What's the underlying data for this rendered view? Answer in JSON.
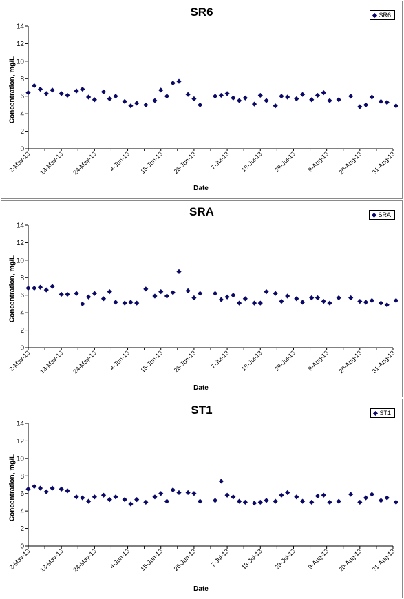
{
  "chart_data": [
    {
      "type": "scatter",
      "title": "SR6",
      "xlabel": "Date",
      "ylabel": "Concentration, mg/L",
      "legend": "SR6",
      "legend_position": "top-right",
      "ylim": [
        0,
        14
      ],
      "yticks": [
        0,
        2,
        4,
        6,
        8,
        10,
        12,
        14
      ],
      "xlim": [
        "2013-05-02",
        "2013-08-31"
      ],
      "xtick_labels": [
        "2-May-13",
        "13-May-13",
        "24-May-13",
        "4-Jun-13",
        "15-Jun-13",
        "26-Jun-13",
        "7-Jul-13",
        "18-Jul-13",
        "29-Jul-13",
        "9-Aug-13",
        "20-Aug-13",
        "31-Aug-13"
      ],
      "grid": false,
      "marker_color": "#0a0a66",
      "points": [
        {
          "x": "2013-05-02",
          "y": 6.4
        },
        {
          "x": "2013-05-04",
          "y": 7.2
        },
        {
          "x": "2013-05-06",
          "y": 6.8
        },
        {
          "x": "2013-05-08",
          "y": 6.3
        },
        {
          "x": "2013-05-10",
          "y": 6.7
        },
        {
          "x": "2013-05-13",
          "y": 6.3
        },
        {
          "x": "2013-05-15",
          "y": 6.1
        },
        {
          "x": "2013-05-18",
          "y": 6.6
        },
        {
          "x": "2013-05-20",
          "y": 6.8
        },
        {
          "x": "2013-05-22",
          "y": 5.9
        },
        {
          "x": "2013-05-24",
          "y": 5.6
        },
        {
          "x": "2013-05-27",
          "y": 6.5
        },
        {
          "x": "2013-05-29",
          "y": 5.7
        },
        {
          "x": "2013-05-31",
          "y": 6.0
        },
        {
          "x": "2013-06-03",
          "y": 5.4
        },
        {
          "x": "2013-06-05",
          "y": 4.9
        },
        {
          "x": "2013-06-07",
          "y": 5.2
        },
        {
          "x": "2013-06-10",
          "y": 5.0
        },
        {
          "x": "2013-06-13",
          "y": 5.5
        },
        {
          "x": "2013-06-15",
          "y": 6.7
        },
        {
          "x": "2013-06-17",
          "y": 6.0
        },
        {
          "x": "2013-06-19",
          "y": 7.5
        },
        {
          "x": "2013-06-21",
          "y": 7.7
        },
        {
          "x": "2013-06-24",
          "y": 6.2
        },
        {
          "x": "2013-06-26",
          "y": 5.7
        },
        {
          "x": "2013-06-28",
          "y": 5.0
        },
        {
          "x": "2013-07-03",
          "y": 6.0
        },
        {
          "x": "2013-07-05",
          "y": 6.1
        },
        {
          "x": "2013-07-07",
          "y": 6.3
        },
        {
          "x": "2013-07-09",
          "y": 5.8
        },
        {
          "x": "2013-07-11",
          "y": 5.5
        },
        {
          "x": "2013-07-13",
          "y": 5.8
        },
        {
          "x": "2013-07-16",
          "y": 5.1
        },
        {
          "x": "2013-07-18",
          "y": 6.1
        },
        {
          "x": "2013-07-20",
          "y": 5.5
        },
        {
          "x": "2013-07-23",
          "y": 4.9
        },
        {
          "x": "2013-07-25",
          "y": 6.0
        },
        {
          "x": "2013-07-27",
          "y": 5.9
        },
        {
          "x": "2013-07-30",
          "y": 5.7
        },
        {
          "x": "2013-08-01",
          "y": 6.2
        },
        {
          "x": "2013-08-04",
          "y": 5.6
        },
        {
          "x": "2013-08-06",
          "y": 6.1
        },
        {
          "x": "2013-08-08",
          "y": 6.4
        },
        {
          "x": "2013-08-10",
          "y": 5.5
        },
        {
          "x": "2013-08-13",
          "y": 5.6
        },
        {
          "x": "2013-08-17",
          "y": 6.0
        },
        {
          "x": "2013-08-20",
          "y": 4.8
        },
        {
          "x": "2013-08-22",
          "y": 5.0
        },
        {
          "x": "2013-08-24",
          "y": 5.9
        },
        {
          "x": "2013-08-27",
          "y": 5.4
        },
        {
          "x": "2013-08-29",
          "y": 5.3
        },
        {
          "x": "2013-09-01",
          "y": 4.9
        }
      ]
    },
    {
      "type": "scatter",
      "title": "SRA",
      "xlabel": "Date",
      "ylabel": "Concentration, mg/L",
      "legend": "SRA",
      "legend_position": "top-right",
      "ylim": [
        0,
        14
      ],
      "yticks": [
        0,
        2,
        4,
        6,
        8,
        10,
        12,
        14
      ],
      "xlim": [
        "2013-05-02",
        "2013-08-31"
      ],
      "xtick_labels": [
        "2-May-13",
        "13-May-13",
        "24-May-13",
        "4-Jun-13",
        "15-Jun-13",
        "26-Jun-13",
        "7-Jul-13",
        "18-Jul-13",
        "29-Jul-13",
        "9-Aug-13",
        "20-Aug-13",
        "31-Aug-13"
      ],
      "grid": false,
      "marker_color": "#0a0a66",
      "points": [
        {
          "x": "2013-05-02",
          "y": 6.8
        },
        {
          "x": "2013-05-04",
          "y": 6.8
        },
        {
          "x": "2013-05-06",
          "y": 6.9
        },
        {
          "x": "2013-05-08",
          "y": 6.6
        },
        {
          "x": "2013-05-10",
          "y": 7.0
        },
        {
          "x": "2013-05-13",
          "y": 6.1
        },
        {
          "x": "2013-05-15",
          "y": 6.1
        },
        {
          "x": "2013-05-18",
          "y": 6.2
        },
        {
          "x": "2013-05-20",
          "y": 5.0
        },
        {
          "x": "2013-05-22",
          "y": 5.8
        },
        {
          "x": "2013-05-24",
          "y": 6.2
        },
        {
          "x": "2013-05-27",
          "y": 5.6
        },
        {
          "x": "2013-05-29",
          "y": 6.4
        },
        {
          "x": "2013-05-31",
          "y": 5.2
        },
        {
          "x": "2013-06-03",
          "y": 5.1
        },
        {
          "x": "2013-06-05",
          "y": 5.2
        },
        {
          "x": "2013-06-07",
          "y": 5.1
        },
        {
          "x": "2013-06-10",
          "y": 6.7
        },
        {
          "x": "2013-06-13",
          "y": 5.9
        },
        {
          "x": "2013-06-15",
          "y": 6.4
        },
        {
          "x": "2013-06-17",
          "y": 5.9
        },
        {
          "x": "2013-06-19",
          "y": 6.3
        },
        {
          "x": "2013-06-21",
          "y": 8.7
        },
        {
          "x": "2013-06-24",
          "y": 6.5
        },
        {
          "x": "2013-06-26",
          "y": 5.7
        },
        {
          "x": "2013-06-28",
          "y": 6.2
        },
        {
          "x": "2013-07-03",
          "y": 6.2
        },
        {
          "x": "2013-07-05",
          "y": 5.5
        },
        {
          "x": "2013-07-07",
          "y": 5.8
        },
        {
          "x": "2013-07-09",
          "y": 6.0
        },
        {
          "x": "2013-07-11",
          "y": 5.1
        },
        {
          "x": "2013-07-13",
          "y": 5.6
        },
        {
          "x": "2013-07-16",
          "y": 5.1
        },
        {
          "x": "2013-07-18",
          "y": 5.1
        },
        {
          "x": "2013-07-20",
          "y": 6.4
        },
        {
          "x": "2013-07-23",
          "y": 6.2
        },
        {
          "x": "2013-07-25",
          "y": 5.3
        },
        {
          "x": "2013-07-27",
          "y": 5.9
        },
        {
          "x": "2013-07-30",
          "y": 5.6
        },
        {
          "x": "2013-08-01",
          "y": 5.2
        },
        {
          "x": "2013-08-04",
          "y": 5.7
        },
        {
          "x": "2013-08-06",
          "y": 5.7
        },
        {
          "x": "2013-08-08",
          "y": 5.3
        },
        {
          "x": "2013-08-10",
          "y": 5.1
        },
        {
          "x": "2013-08-13",
          "y": 5.7
        },
        {
          "x": "2013-08-17",
          "y": 5.7
        },
        {
          "x": "2013-08-20",
          "y": 5.3
        },
        {
          "x": "2013-08-22",
          "y": 5.2
        },
        {
          "x": "2013-08-24",
          "y": 5.4
        },
        {
          "x": "2013-08-27",
          "y": 5.1
        },
        {
          "x": "2013-08-29",
          "y": 4.9
        },
        {
          "x": "2013-09-01",
          "y": 5.4
        }
      ]
    },
    {
      "type": "scatter",
      "title": "ST1",
      "xlabel": "Date",
      "ylabel": "Concentration, mg/L",
      "legend": "ST1",
      "legend_position": "top-right",
      "ylim": [
        0,
        14
      ],
      "yticks": [
        0,
        2,
        4,
        6,
        8,
        10,
        12,
        14
      ],
      "xlim": [
        "2013-05-02",
        "2013-08-31"
      ],
      "xtick_labels": [
        "2-May-13",
        "13-May-13",
        "24-May-13",
        "4-Jun-13",
        "15-Jun-13",
        "26-Jun-13",
        "7-Jul-13",
        "18-Jul-13",
        "29-Jul-13",
        "9-Aug-13",
        "20-Aug-13",
        "31-Aug-13"
      ],
      "grid": false,
      "marker_color": "#0a0a66",
      "points": [
        {
          "x": "2013-05-02",
          "y": 6.5
        },
        {
          "x": "2013-05-04",
          "y": 6.8
        },
        {
          "x": "2013-05-06",
          "y": 6.6
        },
        {
          "x": "2013-05-08",
          "y": 6.2
        },
        {
          "x": "2013-05-10",
          "y": 6.6
        },
        {
          "x": "2013-05-13",
          "y": 6.5
        },
        {
          "x": "2013-05-15",
          "y": 6.3
        },
        {
          "x": "2013-05-18",
          "y": 5.6
        },
        {
          "x": "2013-05-20",
          "y": 5.5
        },
        {
          "x": "2013-05-22",
          "y": 5.1
        },
        {
          "x": "2013-05-24",
          "y": 5.6
        },
        {
          "x": "2013-05-27",
          "y": 5.8
        },
        {
          "x": "2013-05-29",
          "y": 5.3
        },
        {
          "x": "2013-05-31",
          "y": 5.6
        },
        {
          "x": "2013-06-03",
          "y": 5.3
        },
        {
          "x": "2013-06-05",
          "y": 4.8
        },
        {
          "x": "2013-06-07",
          "y": 5.3
        },
        {
          "x": "2013-06-10",
          "y": 5.0
        },
        {
          "x": "2013-06-13",
          "y": 5.6
        },
        {
          "x": "2013-06-15",
          "y": 6.0
        },
        {
          "x": "2013-06-17",
          "y": 5.1
        },
        {
          "x": "2013-06-19",
          "y": 6.4
        },
        {
          "x": "2013-06-21",
          "y": 6.1
        },
        {
          "x": "2013-06-24",
          "y": 6.1
        },
        {
          "x": "2013-06-26",
          "y": 6.0
        },
        {
          "x": "2013-06-28",
          "y": 5.1
        },
        {
          "x": "2013-07-03",
          "y": 5.2
        },
        {
          "x": "2013-07-05",
          "y": 7.4
        },
        {
          "x": "2013-07-07",
          "y": 5.8
        },
        {
          "x": "2013-07-09",
          "y": 5.6
        },
        {
          "x": "2013-07-11",
          "y": 5.1
        },
        {
          "x": "2013-07-13",
          "y": 5.0
        },
        {
          "x": "2013-07-16",
          "y": 4.9
        },
        {
          "x": "2013-07-18",
          "y": 5.0
        },
        {
          "x": "2013-07-20",
          "y": 5.2
        },
        {
          "x": "2013-07-23",
          "y": 5.1
        },
        {
          "x": "2013-07-25",
          "y": 5.8
        },
        {
          "x": "2013-07-27",
          "y": 6.1
        },
        {
          "x": "2013-07-30",
          "y": 5.6
        },
        {
          "x": "2013-08-01",
          "y": 5.1
        },
        {
          "x": "2013-08-04",
          "y": 5.0
        },
        {
          "x": "2013-08-06",
          "y": 5.7
        },
        {
          "x": "2013-08-08",
          "y": 5.8
        },
        {
          "x": "2013-08-10",
          "y": 5.0
        },
        {
          "x": "2013-08-13",
          "y": 5.1
        },
        {
          "x": "2013-08-17",
          "y": 5.9
        },
        {
          "x": "2013-08-20",
          "y": 5.0
        },
        {
          "x": "2013-08-22",
          "y": 5.5
        },
        {
          "x": "2013-08-24",
          "y": 5.9
        },
        {
          "x": "2013-08-27",
          "y": 5.2
        },
        {
          "x": "2013-08-29",
          "y": 5.5
        },
        {
          "x": "2013-09-01",
          "y": 5.0
        }
      ]
    }
  ]
}
